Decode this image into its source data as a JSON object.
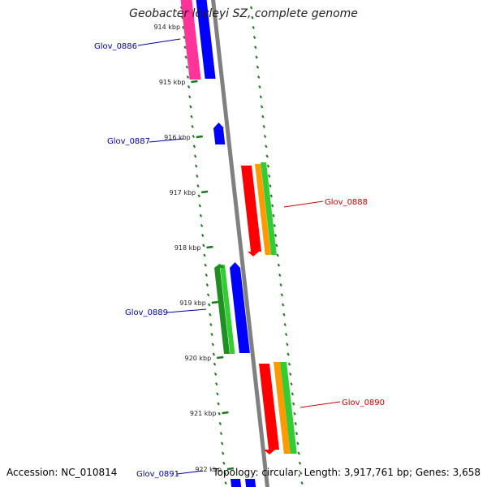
{
  "title": "Geobacter lovleyi SZ, complete genome",
  "footer": {
    "accession": "Accession: NC_010814",
    "summary": "Topology: circular; Length: 3,917,761 bp; Genes: 3,658"
  },
  "colors": {
    "tick": "#1a7a1a",
    "backbone": "#808080",
    "blue": "#0000ff",
    "red": "#ff0000",
    "orange": "#ff9900",
    "green": "#33cc33",
    "darkgreen": "#1f8f1f",
    "pink": "#ff3399",
    "label_forward": "#cc0000",
    "label_reverse": "#0000aa"
  },
  "kbp_ticks": [
    "914 kbp",
    "915 kbp",
    "916 kbp",
    "917 kbp",
    "918 kbp",
    "919 kbp",
    "920 kbp",
    "921 kbp",
    "922 kbp"
  ],
  "genes": [
    {
      "label": "Glov_0886",
      "strand": "reverse"
    },
    {
      "label": "Glov_0887",
      "strand": "reverse"
    },
    {
      "label": "Glov_0888",
      "strand": "forward"
    },
    {
      "label": "Glov_0889",
      "strand": "reverse"
    },
    {
      "label": "Glov_0890",
      "strand": "forward"
    },
    {
      "label": "Glov_0891",
      "strand": "reverse"
    }
  ]
}
